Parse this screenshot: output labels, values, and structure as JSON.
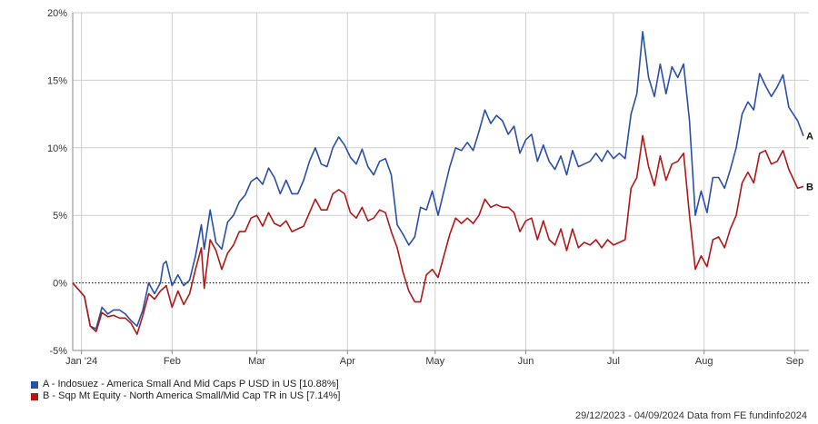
{
  "chart_data": {
    "type": "line",
    "y_unit": "%",
    "ylim": [
      -5,
      20
    ],
    "y_ticks": [
      -5,
      0,
      5,
      10,
      15,
      20
    ],
    "y_tick_labels": [
      "-5%",
      "0%",
      "5%",
      "10%",
      "15%",
      "20%"
    ],
    "x_start": "2023-12-29",
    "x_end": "2024-09-04",
    "x_ticks": [
      {
        "date": "2024-01-01",
        "label": "Jan '24"
      },
      {
        "date": "2024-02-01",
        "label": "Feb"
      },
      {
        "date": "2024-03-01",
        "label": "Mar"
      },
      {
        "date": "2024-04-01",
        "label": "Apr"
      },
      {
        "date": "2024-05-01",
        "label": "May"
      },
      {
        "date": "2024-06-01",
        "label": "Jun"
      },
      {
        "date": "2024-07-01",
        "label": "Jul"
      },
      {
        "date": "2024-08-01",
        "label": "Aug"
      },
      {
        "date": "2024-09-01",
        "label": "Sep"
      }
    ],
    "grid": true,
    "zero_line": "dotted",
    "series": [
      {
        "name": "A - Indosuez - America Small And Mid Caps P USD in US [10.88%]",
        "end_label": "A",
        "color": "#2a4fa8",
        "points": [
          [
            "2023-12-29",
            0.0
          ],
          [
            "2024-01-02",
            -1.0
          ],
          [
            "2024-01-04",
            -3.2
          ],
          [
            "2024-01-06",
            -3.4
          ],
          [
            "2024-01-08",
            -1.8
          ],
          [
            "2024-01-10",
            -2.3
          ],
          [
            "2024-01-12",
            -2.0
          ],
          [
            "2024-01-14",
            -2.0
          ],
          [
            "2024-01-16",
            -2.3
          ],
          [
            "2024-01-18",
            -2.8
          ],
          [
            "2024-01-20",
            -3.2
          ],
          [
            "2024-01-22",
            -2.0
          ],
          [
            "2024-01-24",
            0.0
          ],
          [
            "2024-01-26",
            -0.8
          ],
          [
            "2024-01-28",
            0.0
          ],
          [
            "2024-01-29",
            1.4
          ],
          [
            "2024-01-30",
            1.6
          ],
          [
            "2024-02-01",
            -0.2
          ],
          [
            "2024-02-03",
            0.6
          ],
          [
            "2024-02-05",
            -0.2
          ],
          [
            "2024-02-07",
            0.2
          ],
          [
            "2024-02-09",
            2.0
          ],
          [
            "2024-02-11",
            4.3
          ],
          [
            "2024-02-12",
            2.5
          ],
          [
            "2024-02-14",
            5.4
          ],
          [
            "2024-02-16",
            3.0
          ],
          [
            "2024-02-18",
            2.5
          ],
          [
            "2024-02-20",
            4.5
          ],
          [
            "2024-02-22",
            5.0
          ],
          [
            "2024-02-24",
            6.0
          ],
          [
            "2024-02-26",
            6.5
          ],
          [
            "2024-02-28",
            7.5
          ],
          [
            "2024-03-01",
            7.8
          ],
          [
            "2024-03-03",
            7.3
          ],
          [
            "2024-03-05",
            8.5
          ],
          [
            "2024-03-07",
            7.8
          ],
          [
            "2024-03-09",
            6.6
          ],
          [
            "2024-03-11",
            7.6
          ],
          [
            "2024-03-13",
            6.6
          ],
          [
            "2024-03-15",
            6.6
          ],
          [
            "2024-03-17",
            7.6
          ],
          [
            "2024-03-19",
            9.0
          ],
          [
            "2024-03-21",
            10.0
          ],
          [
            "2024-03-23",
            8.8
          ],
          [
            "2024-03-25",
            8.6
          ],
          [
            "2024-03-27",
            10.0
          ],
          [
            "2024-03-29",
            10.8
          ],
          [
            "2024-03-31",
            10.2
          ],
          [
            "2024-04-02",
            9.3
          ],
          [
            "2024-04-04",
            8.8
          ],
          [
            "2024-04-06",
            9.9
          ],
          [
            "2024-04-08",
            8.6
          ],
          [
            "2024-04-10",
            8.0
          ],
          [
            "2024-04-12",
            9.0
          ],
          [
            "2024-04-14",
            9.2
          ],
          [
            "2024-04-16",
            8.0
          ],
          [
            "2024-04-18",
            4.3
          ],
          [
            "2024-04-20",
            3.6
          ],
          [
            "2024-04-22",
            2.8
          ],
          [
            "2024-04-24",
            3.4
          ],
          [
            "2024-04-26",
            5.6
          ],
          [
            "2024-04-28",
            5.4
          ],
          [
            "2024-04-30",
            6.8
          ],
          [
            "2024-05-02",
            5.0
          ],
          [
            "2024-05-04",
            6.8
          ],
          [
            "2024-05-06",
            8.6
          ],
          [
            "2024-05-08",
            10.0
          ],
          [
            "2024-05-10",
            9.8
          ],
          [
            "2024-05-12",
            10.4
          ],
          [
            "2024-05-14",
            9.8
          ],
          [
            "2024-05-16",
            11.2
          ],
          [
            "2024-05-18",
            12.8
          ],
          [
            "2024-05-20",
            11.8
          ],
          [
            "2024-05-22",
            12.4
          ],
          [
            "2024-05-24",
            12.0
          ],
          [
            "2024-05-26",
            11.0
          ],
          [
            "2024-05-28",
            11.6
          ],
          [
            "2024-05-30",
            9.6
          ],
          [
            "2024-06-01",
            10.6
          ],
          [
            "2024-06-03",
            11.0
          ],
          [
            "2024-06-05",
            9.0
          ],
          [
            "2024-06-07",
            10.2
          ],
          [
            "2024-06-09",
            9.0
          ],
          [
            "2024-06-11",
            8.4
          ],
          [
            "2024-06-13",
            9.4
          ],
          [
            "2024-06-15",
            8.0
          ],
          [
            "2024-06-17",
            9.8
          ],
          [
            "2024-06-19",
            8.6
          ],
          [
            "2024-06-21",
            8.8
          ],
          [
            "2024-06-23",
            9.0
          ],
          [
            "2024-06-25",
            9.6
          ],
          [
            "2024-06-27",
            9.0
          ],
          [
            "2024-06-29",
            9.8
          ],
          [
            "2024-07-01",
            9.2
          ],
          [
            "2024-07-03",
            9.6
          ],
          [
            "2024-07-05",
            9.2
          ],
          [
            "2024-07-07",
            12.5
          ],
          [
            "2024-07-09",
            14.0
          ],
          [
            "2024-07-11",
            18.6
          ],
          [
            "2024-07-13",
            15.2
          ],
          [
            "2024-07-15",
            13.8
          ],
          [
            "2024-07-17",
            16.2
          ],
          [
            "2024-07-19",
            14.0
          ],
          [
            "2024-07-21",
            16.0
          ],
          [
            "2024-07-23",
            15.2
          ],
          [
            "2024-07-25",
            16.2
          ],
          [
            "2024-07-27",
            12.0
          ],
          [
            "2024-07-29",
            5.0
          ],
          [
            "2024-07-31",
            6.8
          ],
          [
            "2024-08-02",
            5.2
          ],
          [
            "2024-08-04",
            7.8
          ],
          [
            "2024-08-06",
            7.8
          ],
          [
            "2024-08-08",
            7.0
          ],
          [
            "2024-08-10",
            8.4
          ],
          [
            "2024-08-12",
            10.0
          ],
          [
            "2024-08-14",
            12.5
          ],
          [
            "2024-08-16",
            13.4
          ],
          [
            "2024-08-18",
            12.8
          ],
          [
            "2024-08-20",
            15.5
          ],
          [
            "2024-08-22",
            14.6
          ],
          [
            "2024-08-24",
            13.8
          ],
          [
            "2024-08-26",
            14.5
          ],
          [
            "2024-08-28",
            15.4
          ],
          [
            "2024-08-30",
            13.0
          ],
          [
            "2024-09-02",
            12.0
          ],
          [
            "2024-09-04",
            10.88
          ]
        ]
      },
      {
        "name": "B - Sqp Mt Equity - North America Small/Mid Cap TR in US [7.14%]",
        "end_label": "B",
        "color": "#b01818",
        "points": [
          [
            "2023-12-29",
            0.0
          ],
          [
            "2024-01-02",
            -1.0
          ],
          [
            "2024-01-04",
            -3.2
          ],
          [
            "2024-01-06",
            -3.6
          ],
          [
            "2024-01-08",
            -2.2
          ],
          [
            "2024-01-10",
            -2.5
          ],
          [
            "2024-01-12",
            -2.4
          ],
          [
            "2024-01-14",
            -2.6
          ],
          [
            "2024-01-16",
            -2.6
          ],
          [
            "2024-01-18",
            -3.0
          ],
          [
            "2024-01-20",
            -3.8
          ],
          [
            "2024-01-22",
            -2.4
          ],
          [
            "2024-01-24",
            -0.8
          ],
          [
            "2024-01-26",
            -1.2
          ],
          [
            "2024-01-28",
            -0.6
          ],
          [
            "2024-01-29",
            -0.4
          ],
          [
            "2024-01-30",
            -0.2
          ],
          [
            "2024-02-01",
            -1.8
          ],
          [
            "2024-02-03",
            -0.6
          ],
          [
            "2024-02-05",
            -1.6
          ],
          [
            "2024-02-07",
            -0.8
          ],
          [
            "2024-02-09",
            1.0
          ],
          [
            "2024-02-11",
            2.6
          ],
          [
            "2024-02-12",
            -0.4
          ],
          [
            "2024-02-14",
            3.2
          ],
          [
            "2024-02-16",
            2.4
          ],
          [
            "2024-02-18",
            1.0
          ],
          [
            "2024-02-20",
            2.2
          ],
          [
            "2024-02-22",
            2.8
          ],
          [
            "2024-02-24",
            3.8
          ],
          [
            "2024-02-26",
            3.8
          ],
          [
            "2024-02-28",
            4.8
          ],
          [
            "2024-03-01",
            5.0
          ],
          [
            "2024-03-03",
            4.2
          ],
          [
            "2024-03-05",
            5.2
          ],
          [
            "2024-03-07",
            4.4
          ],
          [
            "2024-03-09",
            4.2
          ],
          [
            "2024-03-11",
            4.6
          ],
          [
            "2024-03-13",
            3.8
          ],
          [
            "2024-03-15",
            4.0
          ],
          [
            "2024-03-17",
            4.2
          ],
          [
            "2024-03-19",
            5.2
          ],
          [
            "2024-03-21",
            6.2
          ],
          [
            "2024-03-23",
            5.4
          ],
          [
            "2024-03-25",
            5.4
          ],
          [
            "2024-03-27",
            6.6
          ],
          [
            "2024-03-29",
            6.9
          ],
          [
            "2024-03-31",
            6.6
          ],
          [
            "2024-04-02",
            5.2
          ],
          [
            "2024-04-04",
            4.8
          ],
          [
            "2024-04-06",
            5.6
          ],
          [
            "2024-04-08",
            4.6
          ],
          [
            "2024-04-10",
            4.8
          ],
          [
            "2024-04-12",
            5.4
          ],
          [
            "2024-04-14",
            5.2
          ],
          [
            "2024-04-16",
            3.8
          ],
          [
            "2024-04-18",
            2.6
          ],
          [
            "2024-04-20",
            0.8
          ],
          [
            "2024-04-22",
            -0.6
          ],
          [
            "2024-04-24",
            -1.4
          ],
          [
            "2024-04-26",
            -1.4
          ],
          [
            "2024-04-28",
            0.6
          ],
          [
            "2024-04-30",
            1.0
          ],
          [
            "2024-05-02",
            0.4
          ],
          [
            "2024-05-04",
            2.0
          ],
          [
            "2024-05-06",
            3.6
          ],
          [
            "2024-05-08",
            4.8
          ],
          [
            "2024-05-10",
            4.4
          ],
          [
            "2024-05-12",
            4.8
          ],
          [
            "2024-05-14",
            4.4
          ],
          [
            "2024-05-16",
            5.0
          ],
          [
            "2024-05-18",
            6.2
          ],
          [
            "2024-05-20",
            5.6
          ],
          [
            "2024-05-22",
            5.8
          ],
          [
            "2024-05-24",
            5.6
          ],
          [
            "2024-05-26",
            5.6
          ],
          [
            "2024-05-28",
            5.2
          ],
          [
            "2024-05-30",
            3.8
          ],
          [
            "2024-06-01",
            4.6
          ],
          [
            "2024-06-03",
            4.8
          ],
          [
            "2024-06-05",
            3.2
          ],
          [
            "2024-06-07",
            4.6
          ],
          [
            "2024-06-09",
            3.2
          ],
          [
            "2024-06-11",
            2.8
          ],
          [
            "2024-06-13",
            4.0
          ],
          [
            "2024-06-15",
            2.4
          ],
          [
            "2024-06-17",
            4.0
          ],
          [
            "2024-06-19",
            2.6
          ],
          [
            "2024-06-21",
            3.0
          ],
          [
            "2024-06-23",
            2.8
          ],
          [
            "2024-06-25",
            3.2
          ],
          [
            "2024-06-27",
            2.6
          ],
          [
            "2024-06-29",
            3.2
          ],
          [
            "2024-07-01",
            2.8
          ],
          [
            "2024-07-03",
            3.0
          ],
          [
            "2024-07-05",
            3.2
          ],
          [
            "2024-07-07",
            7.0
          ],
          [
            "2024-07-09",
            7.8
          ],
          [
            "2024-07-11",
            10.9
          ],
          [
            "2024-07-13",
            8.6
          ],
          [
            "2024-07-15",
            7.2
          ],
          [
            "2024-07-17",
            9.4
          ],
          [
            "2024-07-19",
            7.6
          ],
          [
            "2024-07-21",
            8.8
          ],
          [
            "2024-07-23",
            9.0
          ],
          [
            "2024-07-25",
            9.6
          ],
          [
            "2024-07-27",
            5.0
          ],
          [
            "2024-07-29",
            1.0
          ],
          [
            "2024-07-31",
            2.0
          ],
          [
            "2024-08-02",
            1.2
          ],
          [
            "2024-08-04",
            3.2
          ],
          [
            "2024-08-06",
            3.4
          ],
          [
            "2024-08-08",
            2.6
          ],
          [
            "2024-08-10",
            4.0
          ],
          [
            "2024-08-12",
            5.0
          ],
          [
            "2024-08-14",
            7.4
          ],
          [
            "2024-08-16",
            8.2
          ],
          [
            "2024-08-18",
            7.4
          ],
          [
            "2024-08-20",
            9.6
          ],
          [
            "2024-08-22",
            9.8
          ],
          [
            "2024-08-24",
            8.8
          ],
          [
            "2024-08-26",
            9.0
          ],
          [
            "2024-08-28",
            9.8
          ],
          [
            "2024-08-30",
            8.4
          ],
          [
            "2024-09-02",
            7.0
          ],
          [
            "2024-09-04",
            7.14
          ]
        ]
      }
    ],
    "legend_placement": "bottom-left",
    "footer": "29/12/2023 - 04/09/2024 Data from FE fundinfo2024"
  }
}
